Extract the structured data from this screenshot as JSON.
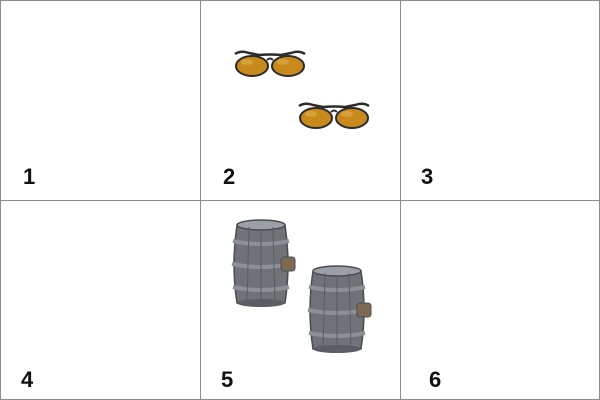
{
  "cells": [
    {
      "label": "1",
      "content": "empty"
    },
    {
      "label": "2",
      "content": "sunglasses",
      "count": 2
    },
    {
      "label": "3",
      "content": "empty"
    },
    {
      "label": "4",
      "content": "empty"
    },
    {
      "label": "5",
      "content": "barrel",
      "count": 2
    },
    {
      "label": "6",
      "content": "empty"
    }
  ],
  "colors": {
    "border": "#8a8a8a",
    "lens": "#c98a1c",
    "frame": "#2b2b2b",
    "barrel_wood": "#6f7378",
    "barrel_hoop": "#8c9196"
  }
}
